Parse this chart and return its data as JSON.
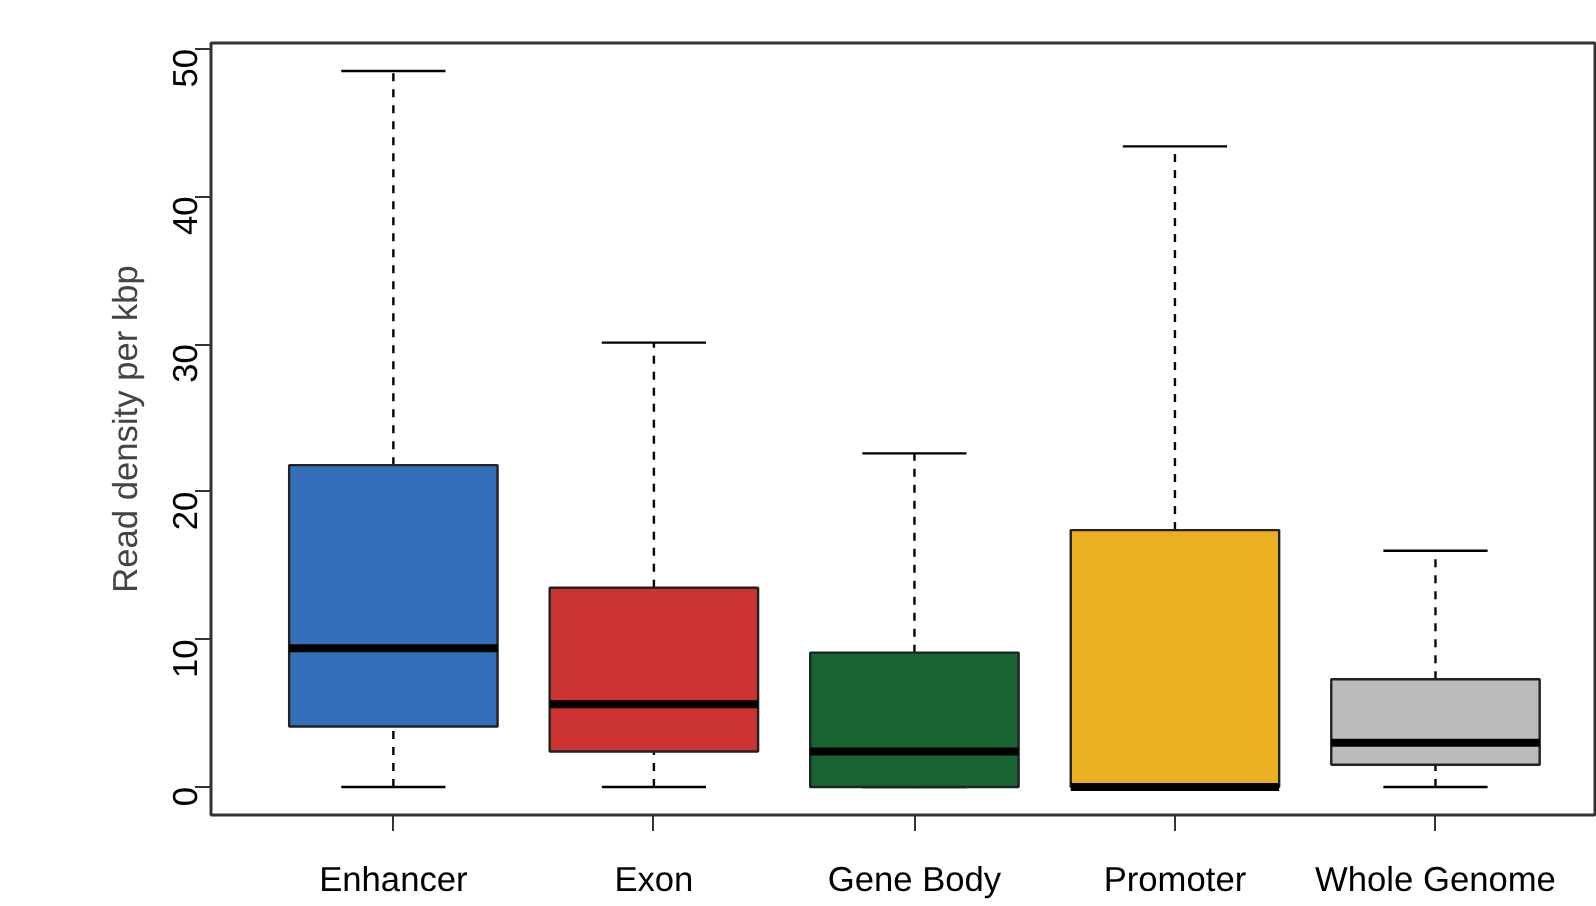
{
  "chart_data": {
    "type": "box",
    "categories": [
      "Enhancer",
      "Exon",
      "Gene Body",
      "Promoter",
      "Whole Genome"
    ],
    "ylabel": "Read density per kbp",
    "ylim": [
      -1.9,
      50.4
    ],
    "yticks": [
      0,
      10,
      20,
      30,
      40,
      50
    ],
    "colors": [
      "#3470ba",
      "#cc3333",
      "#176332",
      "#ebb022",
      "#bbbbbb"
    ],
    "boxes": [
      {
        "low": 0,
        "q1": 4.1,
        "median": 9.4,
        "q3": 21.8,
        "high": 48.5
      },
      {
        "low": 0,
        "q1": 2.4,
        "median": 5.6,
        "q3": 13.5,
        "high": 30.1
      },
      {
        "low": 0,
        "q1": 0,
        "median": 2.4,
        "q3": 9.1,
        "high": 22.6
      },
      {
        "low": 0,
        "q1": 0,
        "median": 0,
        "q3": 17.4,
        "high": 43.4
      },
      {
        "low": 0,
        "q1": 1.5,
        "median": 3.0,
        "q3": 7.3,
        "high": 16.0
      }
    ]
  }
}
